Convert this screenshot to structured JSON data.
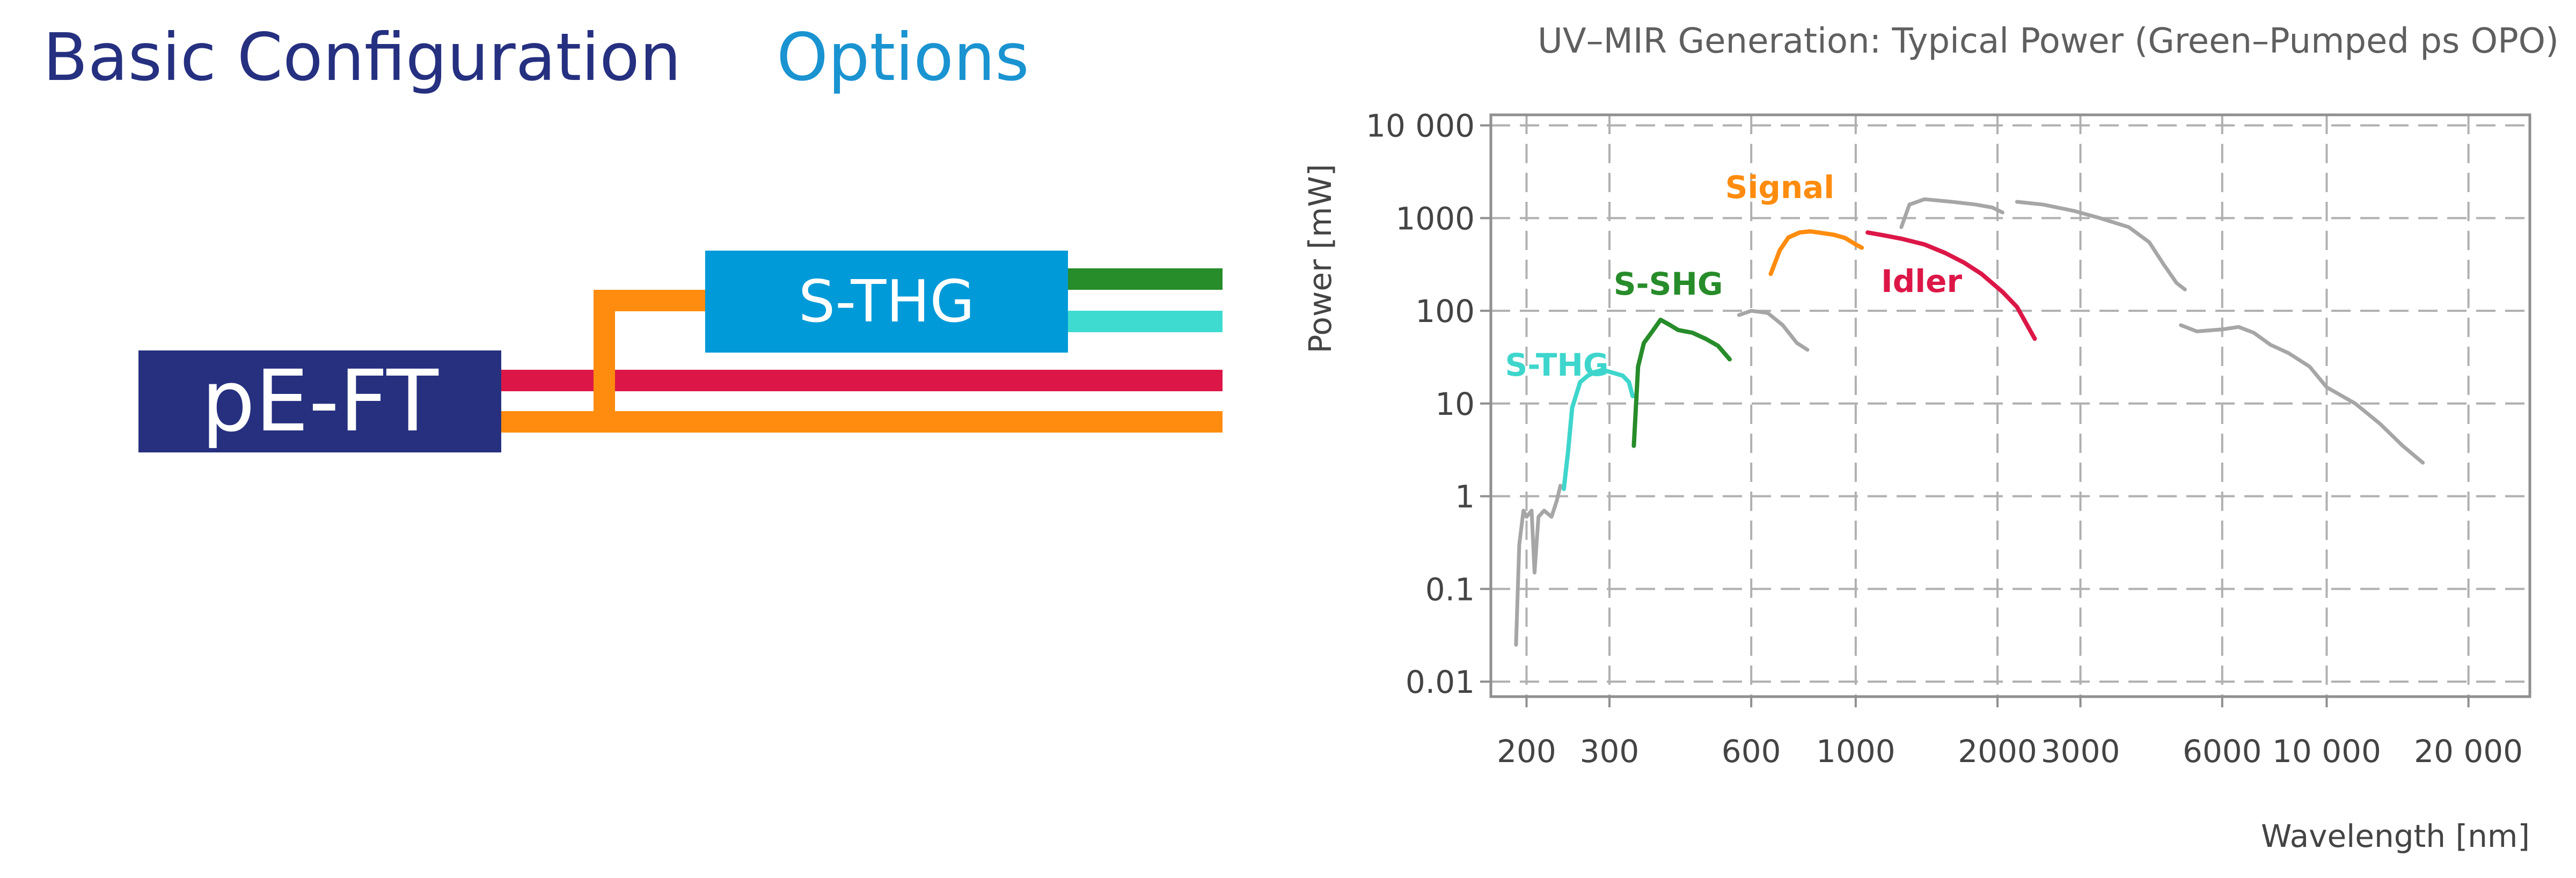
{
  "diagram": {
    "heading_left": "Basic Configuration",
    "heading_right": "Options",
    "main_block": "pE-FT",
    "option_block": "S-THG",
    "colors": {
      "navy": "#26307f",
      "blue": "#009ad8",
      "orange": "#ff8c0e",
      "red": "#dc1747",
      "green": "#278c2a",
      "cyan": "#3edcd0"
    }
  },
  "chart_data": {
    "type": "line",
    "title": "UV–MIR Generation: Typical Power (Green–Pumped ps OPO)",
    "xlabel": "Wavelength [nm]",
    "ylabel": "Power [mW]",
    "x_scale": "log",
    "y_scale": "log",
    "xlim": [
      168,
      27000
    ],
    "ylim": [
      0.0069,
      13000
    ],
    "grid": true,
    "x_ticks": [
      {
        "value": 200,
        "label": "200"
      },
      {
        "value": 300,
        "label": "300"
      },
      {
        "value": 600,
        "label": "600"
      },
      {
        "value": 1000,
        "label": "1000"
      },
      {
        "value": 2000,
        "label": "2000"
      },
      {
        "value": 3000,
        "label": "3000"
      },
      {
        "value": 6000,
        "label": "6000"
      },
      {
        "value": 10000,
        "label": "10 000"
      },
      {
        "value": 20000,
        "label": "20 000"
      }
    ],
    "y_ticks": [
      {
        "value": 0.01,
        "label": "0.01"
      },
      {
        "value": 0.1,
        "label": "0.1"
      },
      {
        "value": 1,
        "label": "1"
      },
      {
        "value": 10,
        "label": "10"
      },
      {
        "value": 100,
        "label": "100"
      },
      {
        "value": 1000,
        "label": "1000"
      },
      {
        "value": 10000,
        "label": "10 000"
      }
    ],
    "series": [
      {
        "name": "S-THG",
        "color": "#3ed6cc",
        "label_at": [
          232,
          20
        ],
        "points": [
          [
            240,
            1.2
          ],
          [
            245,
            3
          ],
          [
            250,
            9
          ],
          [
            260,
            17
          ],
          [
            270,
            20
          ],
          [
            280,
            22
          ],
          [
            290,
            23
          ],
          [
            300,
            22
          ],
          [
            310,
            21
          ],
          [
            320,
            20
          ],
          [
            330,
            17
          ],
          [
            336,
            12
          ]
        ]
      },
      {
        "name": "S-SHG",
        "color": "#278c2a",
        "label_at": [
          400,
          150
        ],
        "points": [
          [
            338,
            3.5
          ],
          [
            345,
            25
          ],
          [
            355,
            45
          ],
          [
            370,
            60
          ],
          [
            385,
            80
          ],
          [
            400,
            72
          ],
          [
            420,
            62
          ],
          [
            450,
            58
          ],
          [
            480,
            50
          ],
          [
            510,
            42
          ],
          [
            540,
            30
          ]
        ]
      },
      {
        "name": "Signal",
        "color": "#ff8c0e",
        "label_at": [
          690,
          1650
        ],
        "points": [
          [
            660,
            250
          ],
          [
            690,
            450
          ],
          [
            720,
            620
          ],
          [
            760,
            700
          ],
          [
            800,
            720
          ],
          [
            850,
            690
          ],
          [
            900,
            660
          ],
          [
            950,
            610
          ],
          [
            1000,
            520
          ],
          [
            1030,
            480
          ]
        ]
      },
      {
        "name": "Idler",
        "color": "#dc1747",
        "label_at": [
          1380,
          160
        ],
        "points": [
          [
            1060,
            700
          ],
          [
            1150,
            650
          ],
          [
            1250,
            600
          ],
          [
            1400,
            520
          ],
          [
            1550,
            420
          ],
          [
            1700,
            330
          ],
          [
            1850,
            250
          ],
          [
            2050,
            160
          ],
          [
            2200,
            110
          ],
          [
            2400,
            50
          ]
        ]
      },
      {
        "color": "#a6a6a6",
        "points": [
          [
            190,
            0.025
          ],
          [
            193,
            0.3
          ],
          [
            197,
            0.7
          ],
          [
            200,
            0.6
          ],
          [
            205,
            0.7
          ],
          [
            208,
            0.15
          ],
          [
            212,
            0.6
          ],
          [
            218,
            0.7
          ],
          [
            226,
            0.6
          ],
          [
            232,
            0.9
          ],
          [
            236,
            1.3
          ]
        ]
      },
      {
        "color": "#a6a6a6",
        "points": [
          [
            565,
            90
          ],
          [
            600,
            100
          ],
          [
            650,
            95
          ],
          [
            700,
            70
          ],
          [
            750,
            45
          ],
          [
            790,
            38
          ]
        ]
      },
      {
        "color": "#a6a6a6",
        "points": [
          [
            1250,
            800
          ],
          [
            1300,
            1400
          ],
          [
            1400,
            1600
          ],
          [
            1600,
            1500
          ],
          [
            1800,
            1400
          ],
          [
            1950,
            1300
          ],
          [
            2050,
            1150
          ]
        ]
      },
      {
        "color": "#a6a6a6",
        "points": [
          [
            2200,
            1500
          ],
          [
            2500,
            1400
          ],
          [
            2900,
            1200
          ],
          [
            3300,
            1000
          ],
          [
            3800,
            800
          ],
          [
            4200,
            550
          ],
          [
            4500,
            320
          ],
          [
            4800,
            200
          ],
          [
            5000,
            170
          ]
        ]
      },
      {
        "color": "#a6a6a6",
        "points": [
          [
            4900,
            70
          ],
          [
            5300,
            60
          ],
          [
            6000,
            63
          ],
          [
            6500,
            67
          ],
          [
            7000,
            58
          ],
          [
            7600,
            43
          ],
          [
            8300,
            35
          ],
          [
            9200,
            25
          ],
          [
            10000,
            15
          ],
          [
            11500,
            10
          ],
          [
            13000,
            6
          ],
          [
            14500,
            3.5
          ],
          [
            16000,
            2.3
          ]
        ]
      }
    ]
  }
}
